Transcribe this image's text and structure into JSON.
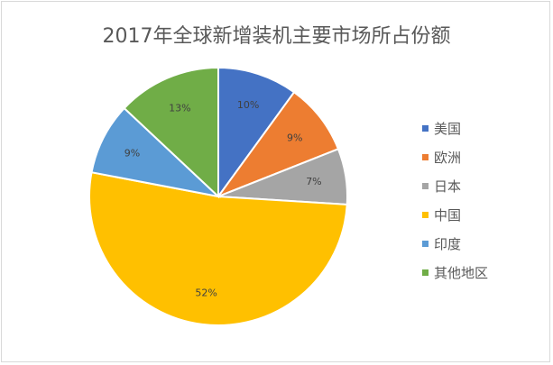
{
  "chart_data": {
    "type": "pie",
    "title": "2017年全球新增装机主要市场所占份额",
    "categories": [
      "美国",
      "欧洲",
      "日本",
      "中国",
      "印度",
      "其他地区"
    ],
    "values": [
      10,
      9,
      7,
      52,
      9,
      13
    ],
    "labels": [
      "10%",
      "9%",
      "7%",
      "52%",
      "9%",
      "13%"
    ],
    "colors": [
      "#4472C4",
      "#ED7D31",
      "#A5A5A5",
      "#FFC000",
      "#5B9BD5",
      "#70AD47"
    ],
    "legend": "right",
    "start": "top",
    "direction": "clockwise"
  }
}
